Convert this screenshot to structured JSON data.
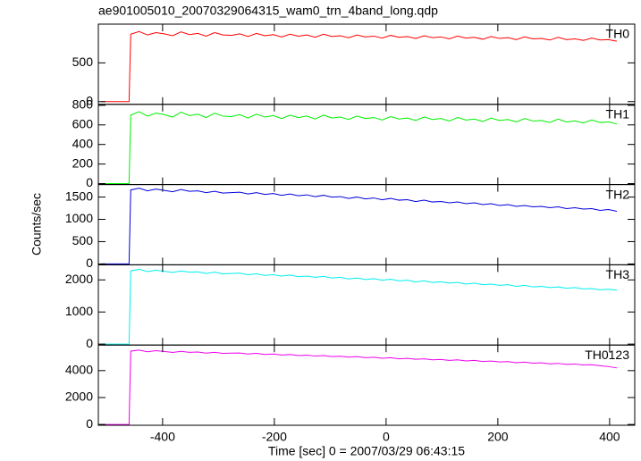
{
  "chart_data": {
    "type": "line",
    "title": "ae901005010_20070329064315_wam0_trn_4band_long.qdp",
    "xlabel": "Time [sec] 0 = 2007/03/29 06:43:15",
    "ylabel": "Counts/sec",
    "xlim": [
      -515,
      445
    ],
    "xticks": [
      -400,
      -200,
      0,
      200,
      400
    ],
    "x": [
      -510,
      -485,
      -460,
      -457,
      -442,
      -427,
      -412,
      -397,
      -382,
      -367,
      -352,
      -337,
      -322,
      -307,
      -292,
      -277,
      -262,
      -247,
      -232,
      -217,
      -202,
      -187,
      -172,
      -157,
      -142,
      -127,
      -112,
      -97,
      -82,
      -67,
      -52,
      -37,
      -22,
      -7,
      8,
      23,
      38,
      53,
      68,
      83,
      98,
      113,
      128,
      143,
      158,
      173,
      188,
      203,
      218,
      233,
      248,
      263,
      278,
      293,
      308,
      323,
      338,
      353,
      368,
      383,
      398,
      413
    ],
    "series": [
      {
        "name": "TH0",
        "color": "#ff0000",
        "ylim": [
          -35,
          1000
        ],
        "yticks": [
          0,
          500
        ],
        "values": [
          0,
          0,
          0,
          870,
          905,
          860,
          890,
          875,
          850,
          900,
          865,
          880,
          845,
          890,
          860,
          855,
          875,
          840,
          880,
          850,
          865,
          835,
          870,
          845,
          860,
          830,
          870,
          840,
          850,
          825,
          860,
          835,
          845,
          820,
          855,
          830,
          840,
          815,
          850,
          825,
          835,
          810,
          845,
          820,
          830,
          805,
          840,
          815,
          825,
          800,
          835,
          810,
          815,
          795,
          830,
          800,
          810,
          790,
          820,
          795,
          800,
          780
        ]
      },
      {
        "name": "TH1",
        "color": "#00ee00",
        "ylim": [
          -10,
          810
        ],
        "yticks": [
          0,
          200,
          400,
          600,
          800
        ],
        "values": [
          0,
          0,
          0,
          700,
          735,
          690,
          720,
          705,
          680,
          730,
          695,
          710,
          675,
          720,
          690,
          685,
          705,
          670,
          710,
          680,
          695,
          665,
          700,
          675,
          690,
          660,
          700,
          670,
          680,
          655,
          690,
          665,
          675,
          650,
          685,
          660,
          670,
          645,
          680,
          655,
          665,
          640,
          675,
          650,
          660,
          635,
          670,
          645,
          655,
          630,
          665,
          640,
          645,
          625,
          660,
          630,
          640,
          620,
          650,
          625,
          630,
          610
        ]
      },
      {
        "name": "TH2",
        "color": "#0000dd",
        "ylim": [
          -20,
          1780
        ],
        "yticks": [
          0,
          500,
          1000,
          1500
        ],
        "values": [
          0,
          0,
          0,
          1660,
          1700,
          1640,
          1680,
          1650,
          1620,
          1670,
          1630,
          1640,
          1600,
          1630,
          1590,
          1600,
          1610,
          1570,
          1600,
          1560,
          1580,
          1540,
          1570,
          1530,
          1550,
          1510,
          1540,
          1500,
          1510,
          1470,
          1500,
          1460,
          1480,
          1440,
          1470,
          1430,
          1440,
          1400,
          1430,
          1390,
          1400,
          1370,
          1390,
          1350,
          1370,
          1330,
          1350,
          1310,
          1330,
          1290,
          1310,
          1280,
          1290,
          1260,
          1280,
          1240,
          1260,
          1230,
          1240,
          1200,
          1220,
          1180
        ]
      },
      {
        "name": "TH3",
        "color": "#00eeee",
        "ylim": [
          -30,
          2470
        ],
        "yticks": [
          0,
          1000,
          2000
        ],
        "values": [
          0,
          0,
          0,
          2280,
          2330,
          2260,
          2300,
          2270,
          2230,
          2280,
          2240,
          2250,
          2200,
          2240,
          2190,
          2200,
          2210,
          2160,
          2190,
          2140,
          2160,
          2120,
          2150,
          2100,
          2120,
          2080,
          2110,
          2060,
          2080,
          2030,
          2060,
          2010,
          2040,
          1990,
          2020,
          1970,
          1990,
          1940,
          1970,
          1920,
          1940,
          1900,
          1920,
          1870,
          1900,
          1850,
          1870,
          1830,
          1850,
          1800,
          1830,
          1780,
          1800,
          1760,
          1780,
          1740,
          1760,
          1720,
          1730,
          1690,
          1710,
          1680
        ]
      },
      {
        "name": "TH0123",
        "color": "#ee00ee",
        "ylim": [
          -60,
          5900
        ],
        "yticks": [
          0,
          2000,
          4000
        ],
        "values": [
          0,
          0,
          0,
          5450,
          5520,
          5400,
          5480,
          5420,
          5350,
          5430,
          5360,
          5380,
          5300,
          5360,
          5280,
          5300,
          5310,
          5230,
          5280,
          5200,
          5230,
          5160,
          5200,
          5120,
          5150,
          5080,
          5120,
          5040,
          5070,
          5000,
          5040,
          4960,
          4990,
          4920,
          4960,
          4880,
          4910,
          4840,
          4880,
          4800,
          4830,
          4760,
          4800,
          4720,
          4760,
          4680,
          4710,
          4640,
          4670,
          4590,
          4630,
          4550,
          4580,
          4500,
          4540,
          4460,
          4490,
          4420,
          4440,
          4360,
          4300,
          4200
        ]
      }
    ]
  }
}
